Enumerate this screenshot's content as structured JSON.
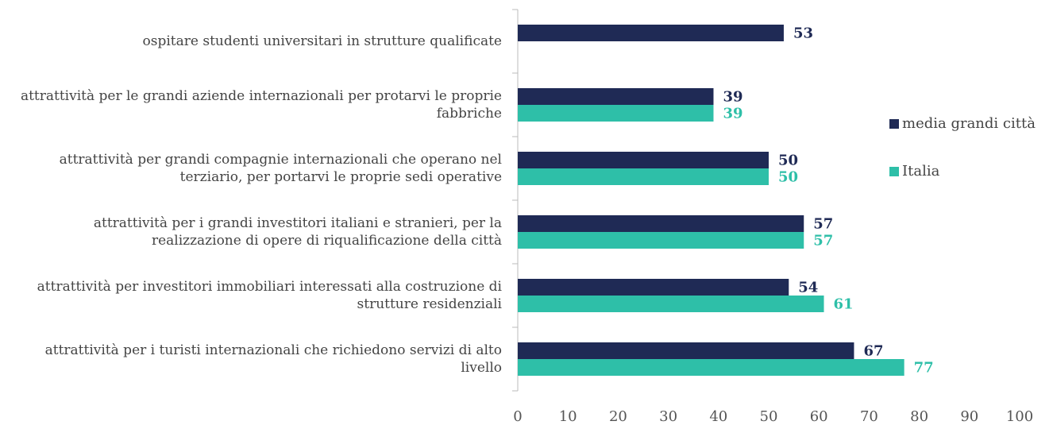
{
  "chart_data": {
    "type": "bar",
    "orientation": "horizontal",
    "categories": [
      "ospitare studenti universitari in strutture qualificate",
      "attrattività per le grandi aziende internazionali per protarvi le proprie fabbriche",
      "attrattività per grandi compagnie internazionali che operano nel terziario, per portarvi le proprie sedi operative",
      "attrattività per i grandi investitori italiani e stranieri, per la realizzazione di opere di riqualificazione della città",
      "attrattività per investitori immobiliari interessati alla costruzione di strutture residenziali",
      "attrattività per i turisti internazionali che richiedono servizi di alto livello"
    ],
    "series": [
      {
        "name": "media grandi città",
        "color": "#1f2a55",
        "values": [
          53,
          39,
          50,
          57,
          54,
          67
        ]
      },
      {
        "name": "Italia",
        "color": "#2ebfa8",
        "values": [
          null,
          39,
          50,
          57,
          61,
          77
        ]
      }
    ],
    "xlim": [
      0,
      100
    ],
    "xticks": [
      0,
      10,
      20,
      30,
      40,
      50,
      60,
      70,
      80,
      90,
      100
    ],
    "grid": false,
    "legend": "right"
  }
}
